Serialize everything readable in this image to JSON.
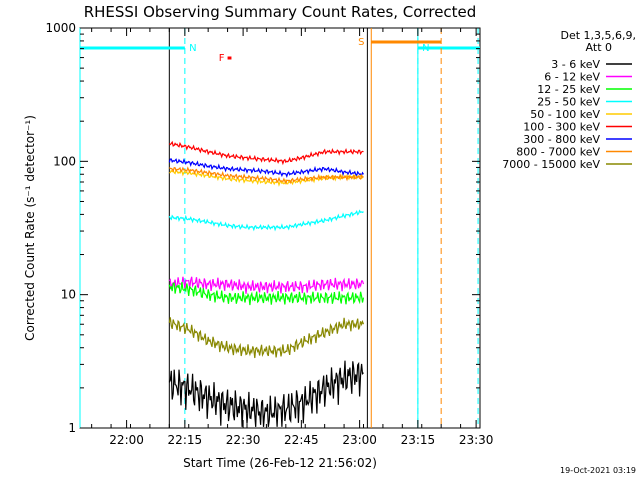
{
  "chart_data": {
    "type": "line",
    "title": "RHESSI Observing Summary Count Rates, Corrected",
    "xlabel": "Start Time (26-Feb-12 21:56:02)",
    "ylabel": "Corrected Count Rate (s⁻¹ detector⁻¹)",
    "yscale": "log",
    "xlim_minutes": [
      -8,
      95
    ],
    "ylim": [
      1,
      1000
    ],
    "x_ticks": [
      {
        "m": 4,
        "label": "22:00"
      },
      {
        "m": 19,
        "label": "22:15"
      },
      {
        "m": 34,
        "label": "22:30"
      },
      {
        "m": 49,
        "label": "22:45"
      },
      {
        "m": 64,
        "label": "23:00"
      },
      {
        "m": 79,
        "label": "23:15"
      },
      {
        "m": 94,
        "label": "23:30"
      }
    ],
    "y_ticks": [
      {
        "v": 1,
        "label": "1"
      },
      {
        "v": 10,
        "label": "10"
      },
      {
        "v": 100,
        "label": "100"
      },
      {
        "v": 1000,
        "label": "1000"
      }
    ],
    "legend": {
      "header1": "Det 1,3,5,6,9,",
      "header2": "Att 0",
      "position": "right"
    },
    "series": [
      {
        "name": "3 - 6 keV",
        "color": "#000000",
        "x": [
          15,
          20,
          25,
          30,
          35,
          40,
          45,
          50,
          55,
          60,
          65
        ],
        "y": [
          2.2,
          2.0,
          1.7,
          1.5,
          1.4,
          1.3,
          1.4,
          1.6,
          2.0,
          2.4,
          2.6
        ]
      },
      {
        "name": "6 - 12 keV",
        "color": "#ff00ff",
        "x": [
          15,
          20,
          25,
          30,
          35,
          40,
          45,
          50,
          55,
          60,
          65
        ],
        "y": [
          12,
          12.5,
          12,
          12,
          11.5,
          11.5,
          11.5,
          11.5,
          12,
          12,
          12
        ]
      },
      {
        "name": "12 - 25 keV",
        "color": "#00ff00",
        "x": [
          15,
          20,
          25,
          30,
          35,
          40,
          45,
          50,
          55,
          60,
          65
        ],
        "y": [
          11.5,
          11,
          10,
          9.5,
          9.5,
          9.5,
          9.5,
          9.5,
          9.5,
          9.5,
          9.5
        ]
      },
      {
        "name": "25 - 50 keV",
        "color": "#00ffff",
        "x": [
          15,
          20,
          25,
          30,
          35,
          40,
          45,
          50,
          55,
          60,
          65
        ],
        "y": [
          38,
          37,
          35,
          33,
          32,
          32,
          32,
          34,
          36,
          39,
          42
        ]
      },
      {
        "name": "50 - 100 keV",
        "color": "#ffcc00",
        "x": [
          15,
          20,
          25,
          30,
          35,
          40,
          45,
          50,
          55,
          60,
          65
        ],
        "y": [
          84,
          82,
          78,
          74,
          72,
          70,
          69,
          72,
          75,
          76,
          77
        ]
      },
      {
        "name": "100 - 300 keV",
        "color": "#ff0000",
        "x": [
          15,
          20,
          25,
          30,
          35,
          40,
          45,
          50,
          55,
          60,
          65
        ],
        "y": [
          136,
          128,
          118,
          110,
          106,
          103,
          100,
          108,
          118,
          118,
          118
        ]
      },
      {
        "name": "300 - 800 keV",
        "color": "#0000ff",
        "x": [
          15,
          20,
          25,
          30,
          35,
          40,
          45,
          50,
          55,
          60,
          65
        ],
        "y": [
          102,
          98,
          92,
          88,
          86,
          84,
          80,
          84,
          88,
          83,
          80
        ]
      },
      {
        "name": "800 - 7000 keV",
        "color": "#ff8800",
        "x": [
          15,
          20,
          25,
          30,
          35,
          40,
          45,
          50,
          55,
          60,
          65
        ],
        "y": [
          88,
          86,
          82,
          78,
          76,
          74,
          71,
          74,
          76,
          76,
          76
        ]
      },
      {
        "name": "7000 - 15000 keV",
        "color": "#888800",
        "x": [
          15,
          20,
          25,
          30,
          35,
          40,
          45,
          50,
          55,
          60,
          65
        ],
        "y": [
          6.2,
          5.5,
          4.5,
          4.0,
          3.8,
          3.8,
          3.8,
          4.5,
          5.2,
          6.0,
          6.0
        ]
      }
    ],
    "flags": [
      {
        "label": "N",
        "color": "#00ffff",
        "x_start": -8,
        "x_end": 19,
        "line_m": 19
      },
      {
        "label": "N",
        "color": "#00ffff",
        "x_start": 79,
        "x_end": 95,
        "line_m": 79
      },
      {
        "label": "S",
        "color": "#ff8800",
        "x_start": 67,
        "x_end": 85,
        "line_m": 85
      },
      {
        "label": "F",
        "color": "#ff0000",
        "x_start": 30,
        "x_end": 31,
        "line_m": null
      }
    ],
    "boundaries": [
      {
        "m": -8,
        "color": "#00ffff",
        "style": "solid"
      },
      {
        "m": 15,
        "color": "#000000",
        "style": "solid"
      },
      {
        "m": 66,
        "color": "#000000",
        "style": "solid"
      },
      {
        "m": 67,
        "color": "#ff8800",
        "style": "solid"
      },
      {
        "m": 79,
        "color": "#00ffff",
        "style": "solid"
      },
      {
        "m": 94.5,
        "color": "#00ffff",
        "style": "dashed"
      }
    ],
    "grid": false
  },
  "footer": {
    "timestamp": "19-Oct-2021 03:19"
  }
}
